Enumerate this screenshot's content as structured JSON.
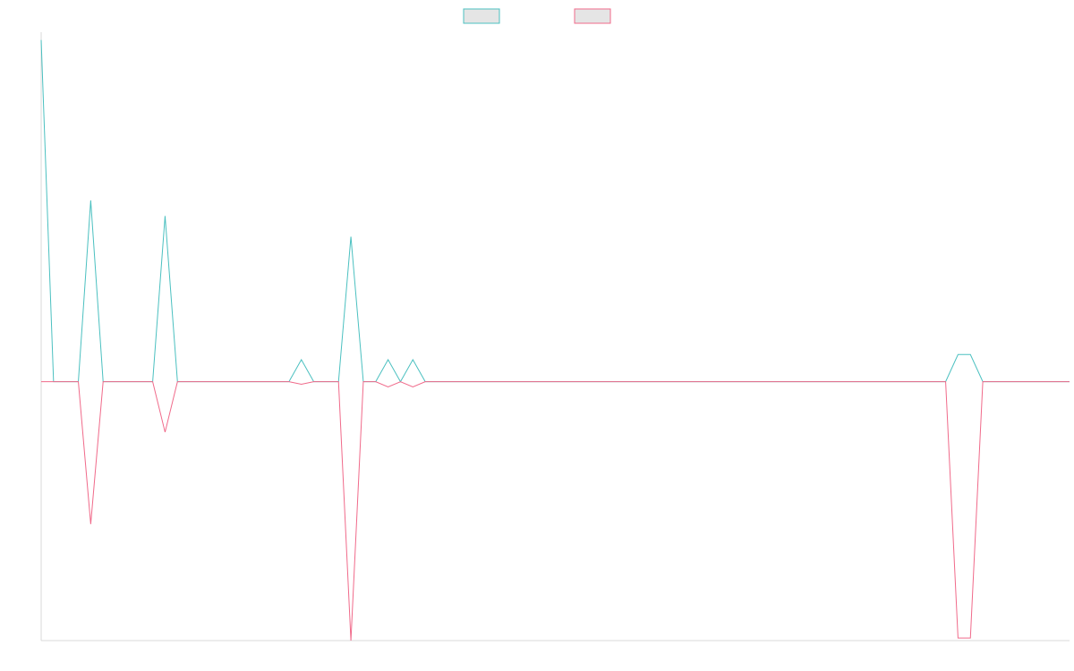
{
  "chart_data": {
    "type": "line",
    "title": "",
    "xlabel": "",
    "ylabel": "",
    "grid": false,
    "legend_position": "top-center",
    "background": "#ffffff",
    "x_count": 84,
    "ylim": [
      -1.0,
      1.35
    ],
    "series": [
      {
        "color": "#4bc0c0",
        "fill": "#e5e5e5",
        "values": [
          1.32,
          0,
          0,
          0,
          0.7,
          0,
          0,
          0,
          0,
          0,
          0.64,
          0,
          0,
          0,
          0,
          0,
          0,
          0,
          0,
          0,
          0,
          0.085,
          0,
          0,
          0,
          0.56,
          0,
          0,
          0.085,
          0,
          0.085,
          0,
          0,
          0,
          0,
          0,
          0,
          0,
          0,
          0,
          0,
          0,
          0,
          0,
          0,
          0,
          0,
          0,
          0,
          0,
          0,
          0,
          0,
          0,
          0,
          0,
          0,
          0,
          0,
          0,
          0,
          0,
          0,
          0,
          0,
          0,
          0,
          0,
          0,
          0,
          0,
          0,
          0,
          0,
          0.105,
          0.105,
          0,
          0,
          0,
          0,
          0,
          0,
          0,
          0
        ]
      },
      {
        "color": "#f06a8a",
        "fill": "#e5e5e5",
        "values": [
          0,
          0,
          0,
          0,
          -0.55,
          0,
          0,
          0,
          0,
          0,
          -0.195,
          0,
          0,
          0,
          0,
          0,
          0,
          0,
          0,
          0,
          0,
          -0.01,
          0,
          0,
          0,
          -1.0,
          0,
          0,
          -0.02,
          0,
          -0.02,
          0,
          0,
          0,
          0,
          0,
          0,
          0,
          0,
          0,
          0,
          0,
          0,
          0,
          0,
          0,
          0,
          0,
          0,
          0,
          0,
          0,
          0,
          0,
          0,
          0,
          0,
          0,
          0,
          0,
          0,
          0,
          0,
          0,
          0,
          0,
          0,
          0,
          0,
          0,
          0,
          0,
          0,
          0,
          -0.99,
          -0.99,
          0,
          0,
          0,
          0,
          0,
          0,
          0,
          0
        ]
      }
    ]
  }
}
